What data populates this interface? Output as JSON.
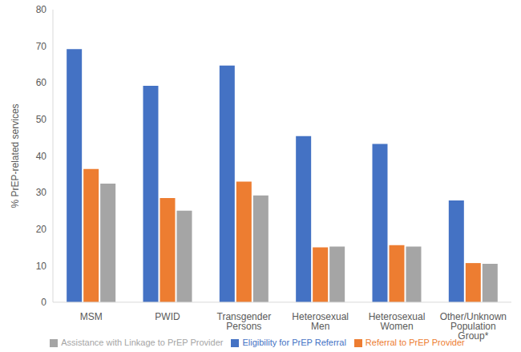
{
  "chart_data": {
    "type": "bar",
    "categories": [
      "MSM",
      "PWID",
      "Transgender Persons",
      "Heterosexual Men",
      "Heterosexual Women",
      "Other/Unknown Population Group*"
    ],
    "series": [
      {
        "name": "Eligibility for PrEP Referral",
        "color": "#4472c4",
        "values": [
          69.2,
          59.2,
          64.7,
          45.4,
          43.3,
          27.8
        ]
      },
      {
        "name": "Referral to PrEP Provider",
        "color": "#ed7d31",
        "values": [
          36.4,
          28.5,
          33.0,
          15.0,
          15.6,
          10.7
        ]
      },
      {
        "name": "Assistance with Linkage to PrEP Provider",
        "color": "#a5a5a5",
        "values": [
          32.4,
          25.0,
          29.2,
          15.2,
          15.2,
          10.5
        ]
      }
    ],
    "ylabel": "% PrEP-related services",
    "ylim": [
      0,
      80
    ],
    "yticks": [
      0,
      10,
      20,
      30,
      40,
      50,
      60,
      70,
      80
    ],
    "grid": false,
    "legend": "bottom"
  }
}
